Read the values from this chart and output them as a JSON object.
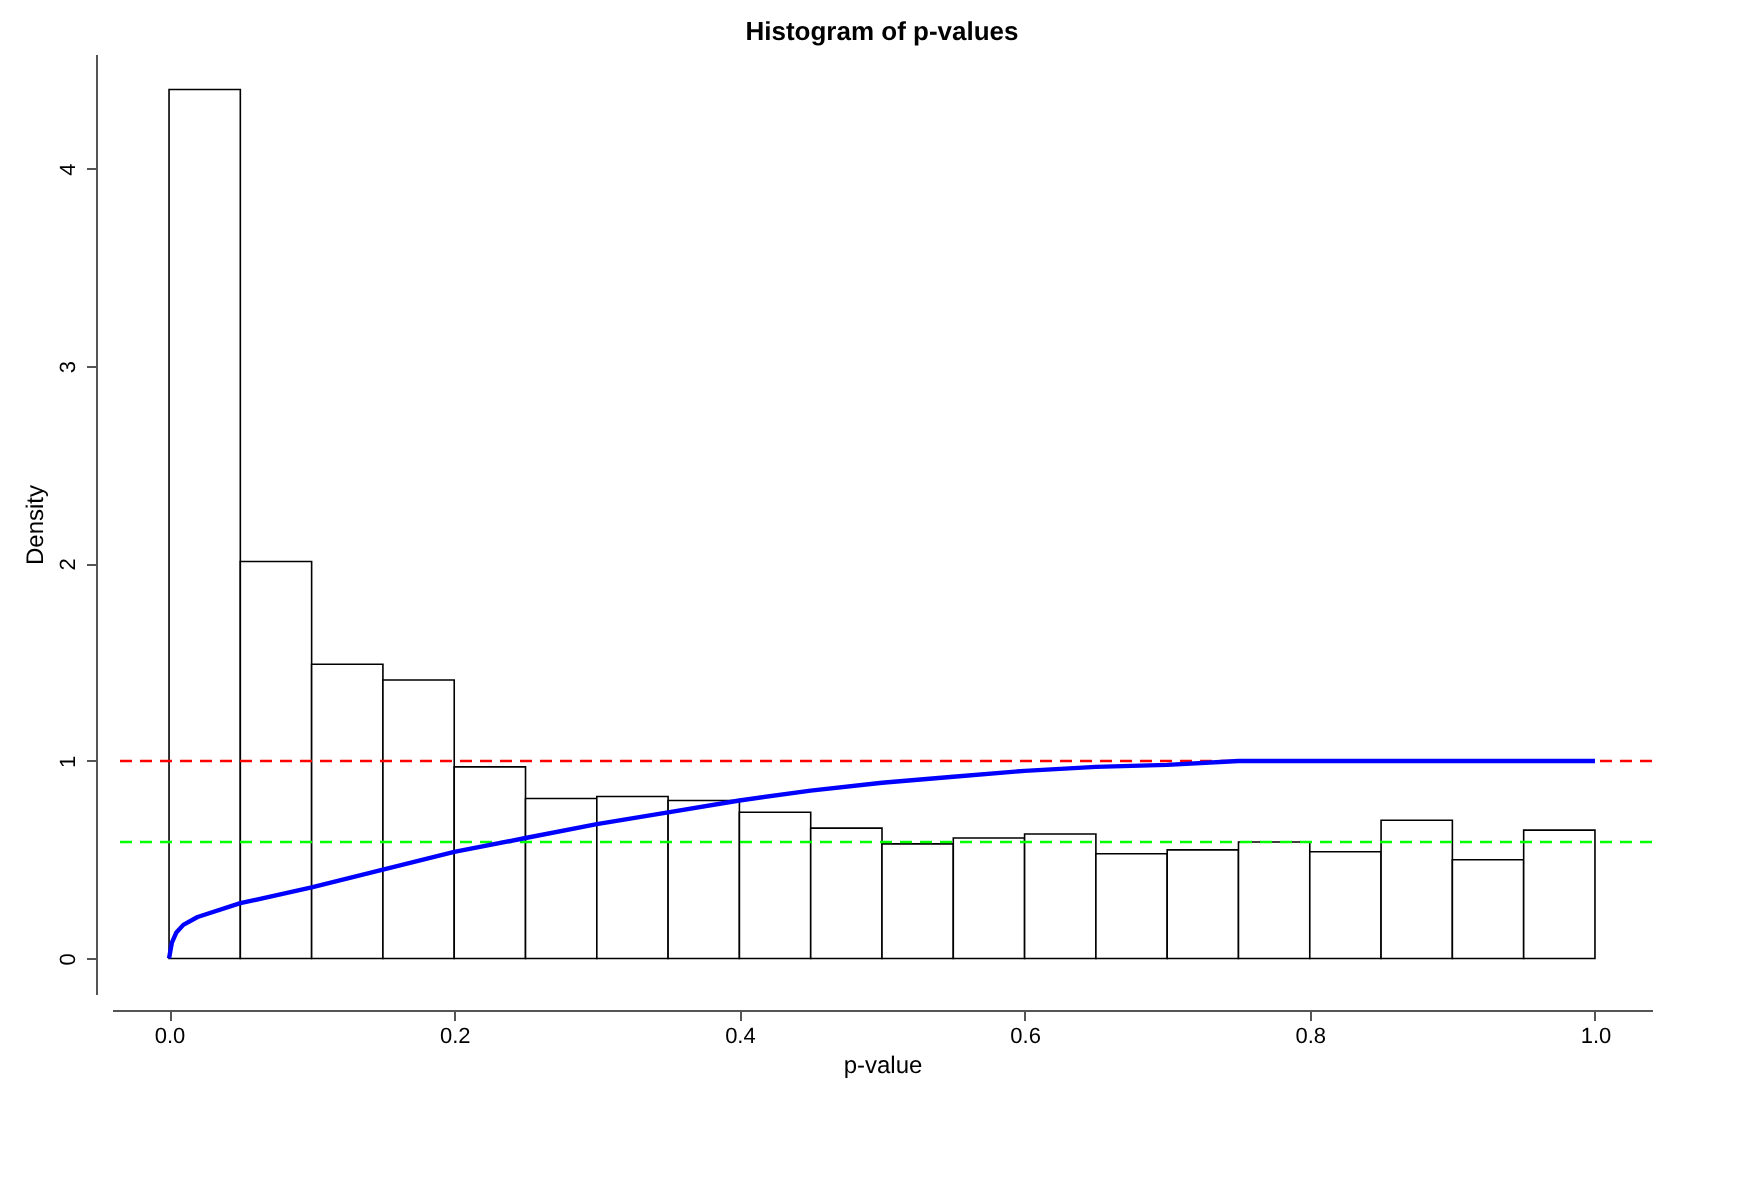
{
  "chart_data": {
    "type": "histogram",
    "title": "Histogram of p-values",
    "xlabel": "p-value",
    "ylabel": "Density",
    "bins": [
      0,
      0.05,
      0.1,
      0.15,
      0.2,
      0.25,
      0.3,
      0.35,
      0.4,
      0.45,
      0.5,
      0.55,
      0.6,
      0.65,
      0.7,
      0.75,
      0.8,
      0.85,
      0.9,
      0.95,
      1.0
    ],
    "values": [
      4.4,
      2.01,
      1.49,
      1.41,
      0.97,
      0.81,
      0.82,
      0.8,
      0.74,
      0.66,
      0.58,
      0.61,
      0.63,
      0.53,
      0.55,
      0.59,
      0.54,
      0.7,
      0.5,
      0.65
    ],
    "color": "#ffffff",
    "series": [
      {
        "type": "line",
        "color": "#0000ff",
        "line_style": "solid",
        "x": [
          0,
          0.002,
          0.005,
          0.01,
          0.02,
          0.05,
          0.1,
          0.15,
          0.2,
          0.25,
          0.3,
          0.35,
          0.4,
          0.45,
          0.5,
          0.55,
          0.6,
          0.65,
          0.7,
          0.75,
          1.0
        ],
        "values": [
          0,
          0.08,
          0.13,
          0.17,
          0.21,
          0.28,
          0.36,
          0.45,
          0.54,
          0.61,
          0.68,
          0.74,
          0.8,
          0.85,
          0.89,
          0.92,
          0.95,
          0.97,
          0.98,
          1.0,
          1.0
        ]
      }
    ],
    "ref_lines": [
      {
        "axis": "y",
        "value": 1,
        "color": "#ff0000",
        "line_style": "dashed"
      },
      {
        "axis": "y",
        "value": 0.59,
        "color": "#00ff00",
        "line_style": "dashed"
      }
    ],
    "xlim": [
      -0.04,
      1.04
    ],
    "ylim": [
      -0.18,
      4.58
    ],
    "xticks": [
      {
        "value": 0,
        "label": "0.0"
      },
      0.2,
      0.4,
      0.6,
      0.8,
      {
        "value": 1,
        "label": "1.0"
      }
    ],
    "yticks": [
      0,
      1,
      2,
      3,
      4
    ],
    "grid": false
  }
}
